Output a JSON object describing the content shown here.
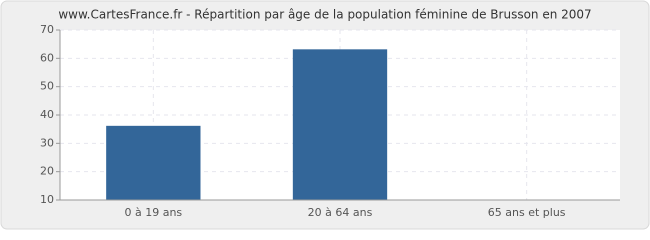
{
  "chart_data": {
    "type": "bar",
    "title": "www.CartesFrance.fr - Répartition par âge de la population féminine de Brusson en 2007",
    "categories": [
      "0 à 19 ans",
      "20 à 64 ans",
      "65 ans et plus"
    ],
    "values": [
      36,
      63,
      10
    ],
    "color": "#336699",
    "ylim": [
      10,
      70
    ],
    "yticks": [
      10,
      20,
      30,
      40,
      50,
      60,
      70
    ],
    "grid": true
  }
}
